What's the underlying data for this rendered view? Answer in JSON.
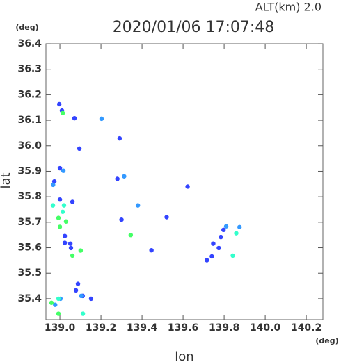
{
  "chart_data": {
    "type": "scatter",
    "title": "2020/01/06 17:07:48",
    "subtitle": "ALT(km)  2.0",
    "x_label": "lon",
    "y_label": "lat",
    "x_unit": "(deg)",
    "y_unit": "(deg)",
    "xlim": [
      138.932,
      140.281
    ],
    "ylim": [
      35.318,
      36.4
    ],
    "xticks": [
      {
        "value": 139,
        "label": "139.0"
      },
      139.2,
      139.4,
      139.6,
      139.8,
      {
        "value": 140,
        "label": "140.0"
      },
      140.2
    ],
    "yticks": [
      35.4,
      35.5,
      35.6,
      35.7,
      35.8,
      35.9,
      {
        "value": 36,
        "label": "36.0"
      },
      36.1,
      36.2,
      36.3,
      36.4
    ],
    "grid": false,
    "series": [
      {
        "color": "#3344ff",
        "x": [
          138.997,
          139.01,
          139.071,
          139.291,
          139.0,
          138.973,
          139.024,
          139.024,
          139.051,
          139.054,
          139.111,
          139.078,
          139.088,
          139.152,
          139.061,
          139.3,
          139.446,
          139.622,
          139.716,
          139.74,
          139.784,
          139.774,
          139.747,
          139.797,
          139.095,
          139.0,
          139.28,
          139.52
        ],
        "y": [
          36.163,
          36.138,
          36.108,
          36.029,
          35.912,
          35.86,
          35.619,
          35.646,
          35.616,
          35.599,
          35.411,
          35.433,
          35.458,
          35.4,
          35.78,
          35.71,
          35.59,
          35.84,
          35.551,
          35.566,
          35.642,
          35.599,
          35.616,
          35.67,
          35.989,
          35.789,
          35.87,
          35.72
        ]
      },
      {
        "color": "#3399ff",
        "x": [
          139.203,
          138.967,
          139.017,
          139.104,
          139.003,
          138.977,
          139.81,
          139.875,
          139.38,
          139.313
        ],
        "y": [
          36.106,
          35.847,
          35.902,
          35.411,
          35.4,
          35.376,
          35.684,
          35.681,
          35.766,
          35.88
        ]
      },
      {
        "color": "#33ffcc",
        "x": [
          138.966,
          139.02,
          139.014,
          139.112,
          138.993,
          139.859,
          139.842
        ],
        "y": [
          35.766,
          35.766,
          35.741,
          35.341,
          35.4,
          35.657,
          35.569
        ]
      },
      {
        "color": "#44ff66",
        "x": [
          139.014,
          138.993,
          139.03,
          139.061,
          139.101,
          138.959,
          138.993,
          139.345,
          139.0
        ],
        "y": [
          36.128,
          35.717,
          35.703,
          35.569,
          35.589,
          35.384,
          35.341,
          35.65,
          35.682
        ]
      }
    ]
  }
}
